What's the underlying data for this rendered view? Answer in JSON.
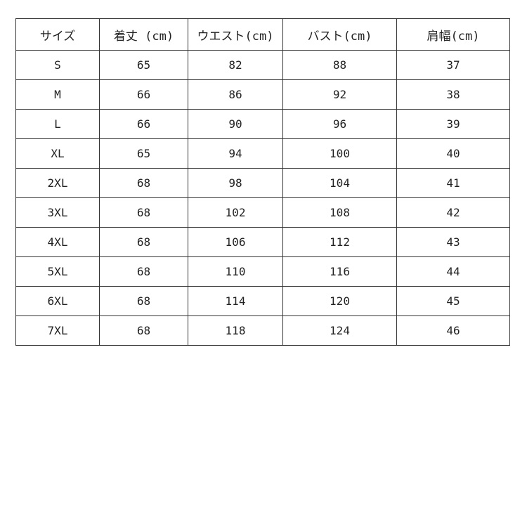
{
  "table": {
    "headers": [
      "サイズ",
      "着丈 (cm)",
      "ウエスト(cm)",
      "バスト(cm)",
      "肩幅(cm)"
    ],
    "rows": [
      [
        "S",
        "65",
        "82",
        "88",
        "37"
      ],
      [
        "M",
        "66",
        "86",
        "92",
        "38"
      ],
      [
        "L",
        "66",
        "90",
        "96",
        "39"
      ],
      [
        "XL",
        "65",
        "94",
        "100",
        "40"
      ],
      [
        "2XL",
        "68",
        "98",
        "104",
        "41"
      ],
      [
        "3XL",
        "68",
        "102",
        "108",
        "42"
      ],
      [
        "4XL",
        "68",
        "106",
        "112",
        "43"
      ],
      [
        "5XL",
        "68",
        "110",
        "116",
        "44"
      ],
      [
        "6XL",
        "68",
        "114",
        "120",
        "45"
      ],
      [
        "7XL",
        "68",
        "118",
        "124",
        "46"
      ]
    ]
  }
}
